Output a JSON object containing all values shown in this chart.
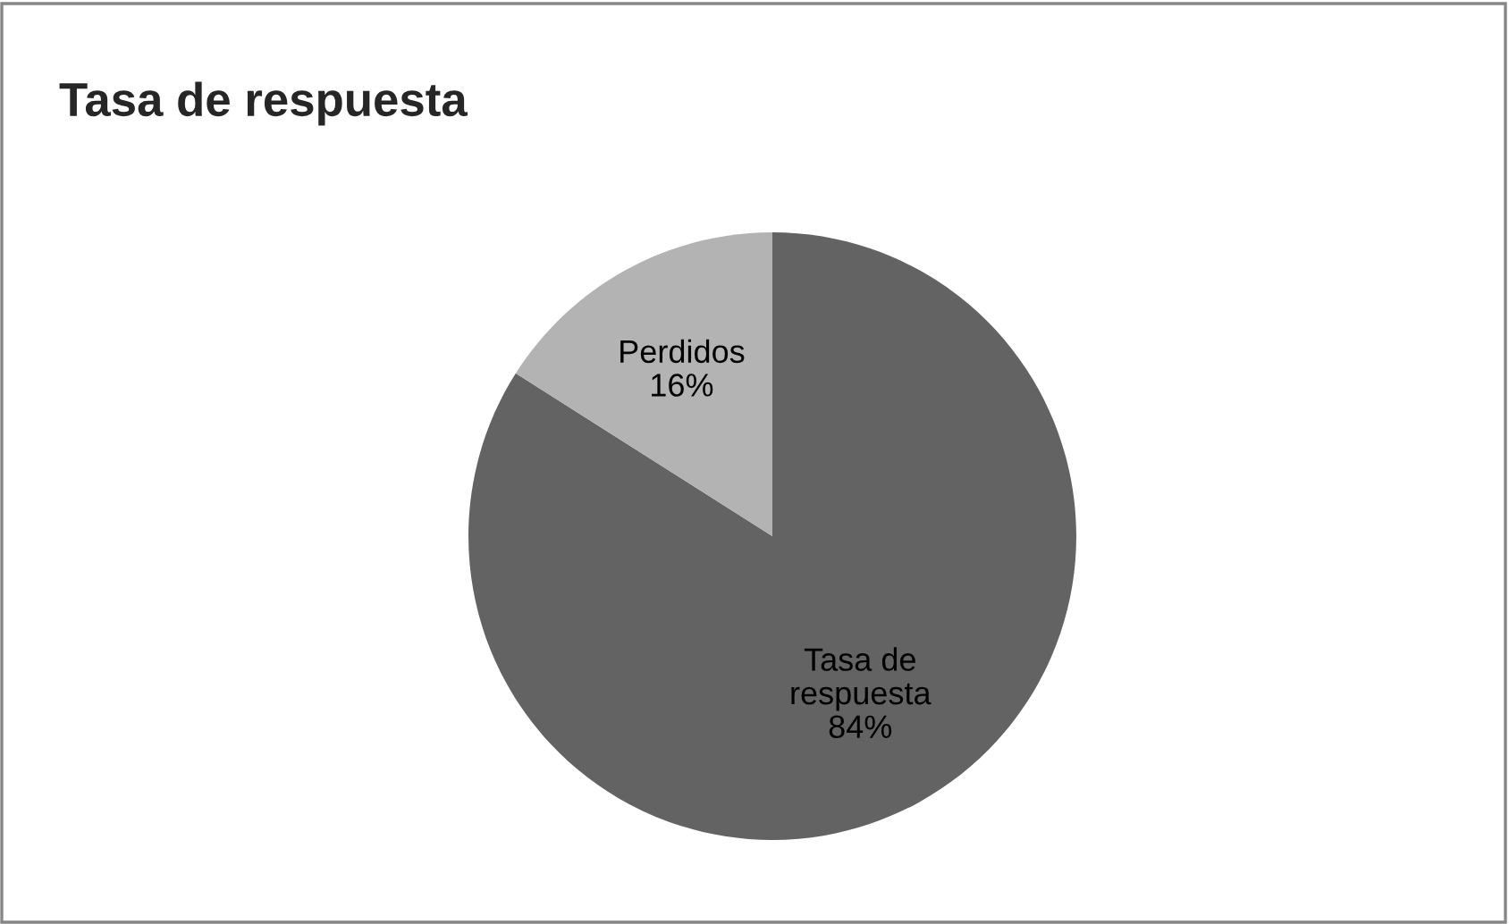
{
  "chart_data": {
    "type": "pie",
    "title": "Tasa de respuesta",
    "categories": [
      "Tasa de respuesta",
      "Perdidos"
    ],
    "values": [
      84,
      16
    ],
    "value_labels": [
      "84%",
      "16%"
    ],
    "colors": [
      "#636363",
      "#b3b3b3"
    ]
  }
}
